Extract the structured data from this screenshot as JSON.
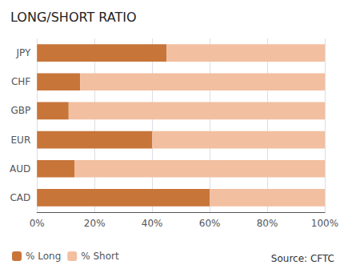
{
  "chart_data": {
    "type": "bar",
    "orientation": "horizontal",
    "stacked": true,
    "title": "LONG/SHORT RATIO",
    "categories": [
      "CAD",
      "AUD",
      "EUR",
      "GBP",
      "CHF",
      "JPY"
    ],
    "series": [
      {
        "name": "% Long",
        "color": "#C8753A",
        "values": [
          60,
          13,
          40,
          11,
          15,
          45
        ]
      },
      {
        "name": "% Short",
        "color": "#F2BFA0",
        "values": [
          40,
          87,
          60,
          89,
          85,
          55
        ]
      }
    ],
    "xlim": [
      0,
      100
    ],
    "xticks": [
      {
        "value": 0,
        "label": "0%"
      },
      {
        "value": 20,
        "label": "20%"
      },
      {
        "value": 40,
        "label": "40%"
      },
      {
        "value": 60,
        "label": "60%"
      },
      {
        "value": 80,
        "label": "80%"
      },
      {
        "value": 100,
        "label": "100%"
      }
    ],
    "grid": true,
    "legend": "lower left",
    "annotation": "Source: CFTC"
  }
}
